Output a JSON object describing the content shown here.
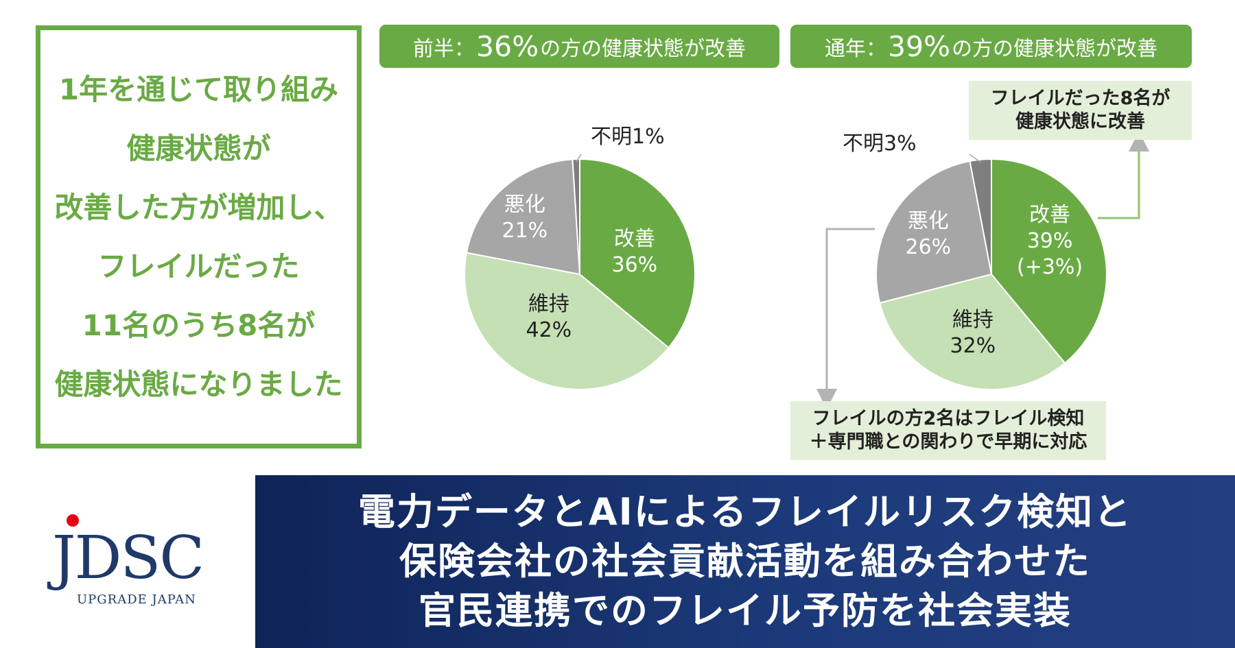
{
  "left_box": {
    "lines": [
      "1年を通じて取り組み",
      "健康状態が",
      "改善した方が増加し、",
      "フレイルだった",
      "11名のうち8名が",
      "健康状態になりました"
    ]
  },
  "pills": {
    "first_half": {
      "prefix": "前半：",
      "percent": "36%",
      "suffix": "の方の健康状態が改善"
    },
    "annual": {
      "prefix": "通年：",
      "percent": "39%",
      "suffix": "の方の健康状態が改善"
    }
  },
  "chart_data": [
    {
      "type": "pie",
      "categories": [
        "改善",
        "維持",
        "悪化",
        "不明"
      ],
      "values": [
        36,
        42,
        21,
        1
      ],
      "labels": [
        {
          "name": "改善",
          "value": "36%",
          "extra": ""
        },
        {
          "name": "維持",
          "value": "42%",
          "extra": ""
        },
        {
          "name": "悪化",
          "value": "21%",
          "extra": ""
        },
        {
          "name": "不明",
          "value": "1%",
          "extra": ""
        }
      ],
      "colors": [
        "#6aaa45",
        "#c5e0b4",
        "#a6a6a6",
        "#7f7f7f"
      ]
    },
    {
      "type": "pie",
      "categories": [
        "改善",
        "維持",
        "悪化",
        "不明"
      ],
      "values": [
        39,
        32,
        26,
        3
      ],
      "labels": [
        {
          "name": "改善",
          "value": "39%",
          "extra": "(+3%)"
        },
        {
          "name": "維持",
          "value": "32%",
          "extra": ""
        },
        {
          "name": "悪化",
          "value": "26%",
          "extra": ""
        },
        {
          "name": "不明",
          "value": "3%",
          "extra": ""
        }
      ],
      "colors": [
        "#6aaa45",
        "#c5e0b4",
        "#a6a6a6",
        "#7f7f7f"
      ]
    }
  ],
  "callouts": {
    "top": [
      "フレイルだった8名が",
      "健康状態に改善"
    ],
    "bottom": [
      "フレイルの方2名はフレイル検知",
      "＋専門職との関わりで早期に対応"
    ]
  },
  "logo": {
    "main": "JDSC",
    "sub": "UPGRADE JAPAN"
  },
  "banner": {
    "lines": [
      "電力データとAIによるフレイルリスク検知と",
      "保険会社の社会貢献活動を組み合わせた",
      "官民連携でのフレイル予防を社会実装"
    ]
  },
  "colors": {
    "accent_green": "#6aaa45",
    "light_green": "#c5e0b4",
    "navy": "#1f3a68"
  }
}
